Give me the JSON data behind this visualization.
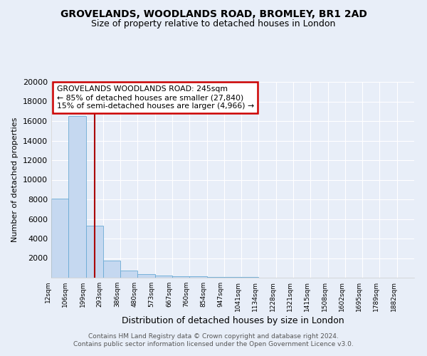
{
  "title1": "GROVELANDS, WOODLANDS ROAD, BROMLEY, BR1 2AD",
  "title2": "Size of property relative to detached houses in London",
  "xlabel": "Distribution of detached houses by size in London",
  "ylabel": "Number of detached properties",
  "categories": [
    "12sqm",
    "106sqm",
    "199sqm",
    "293sqm",
    "386sqm",
    "480sqm",
    "573sqm",
    "667sqm",
    "760sqm",
    "854sqm",
    "947sqm",
    "1041sqm",
    "1134sqm",
    "1228sqm",
    "1321sqm",
    "1415sqm",
    "1508sqm",
    "1602sqm",
    "1695sqm",
    "1789sqm",
    "1882sqm"
  ],
  "values": [
    8100,
    16500,
    5300,
    1750,
    750,
    380,
    230,
    170,
    130,
    100,
    50,
    50,
    0,
    0,
    0,
    0,
    0,
    0,
    0,
    0,
    0
  ],
  "bar_color": "#c5d8f0",
  "bar_edge_color": "#6aaad4",
  "red_line_x": 2.5,
  "annotation_line1": "GROVELANDS WOODLANDS ROAD: 245sqm",
  "annotation_line2": "← 85% of detached houses are smaller (27,840)",
  "annotation_line3": "15% of semi-detached houses are larger (4,966) →",
  "annotation_box_color": "white",
  "annotation_box_edge": "#cc0000",
  "ylim": [
    0,
    20000
  ],
  "yticks": [
    0,
    2000,
    4000,
    6000,
    8000,
    10000,
    12000,
    14000,
    16000,
    18000,
    20000
  ],
  "bg_color": "#e8eef8",
  "grid_color": "#ffffff",
  "footer1": "Contains HM Land Registry data © Crown copyright and database right 2024.",
  "footer2": "Contains public sector information licensed under the Open Government Licence v3.0.",
  "title1_fontsize": 10,
  "title2_fontsize": 9
}
